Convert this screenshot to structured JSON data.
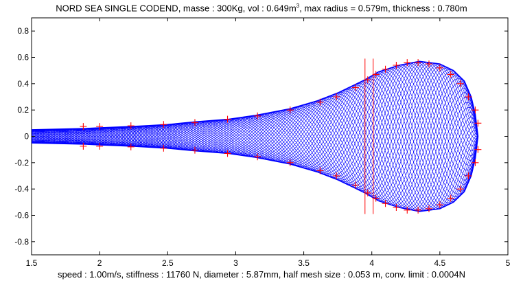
{
  "chart_data": {
    "type": "line",
    "title_parts": {
      "before_sup": "NORD SEA SINGLE CODEND, masse : 300Kg, vol : 0.649m",
      "sup": "3",
      "after_sup": ", max radius = 0.579m, thickness : 0.780m"
    },
    "xlabel": "speed : 1.00m/s, stiffness : 11760 N, diameter : 5.87mm, half mesh size : 0.053 m, conv. limit : 0.0004N",
    "ylabel": "",
    "xlim": [
      1.5,
      5
    ],
    "ylim": [
      -0.9,
      0.9
    ],
    "x_ticks": [
      "1.5",
      "2",
      "2.5",
      "3",
      "3.5",
      "4",
      "4.5",
      "5"
    ],
    "y_ticks": [
      "0.8",
      "0.6",
      "0.4",
      "0.2",
      "0",
      "-0.2",
      "-0.4",
      "-0.6",
      "-0.8"
    ],
    "grid": false,
    "series": [
      {
        "role": "netting-mesh",
        "color": "#0000ff",
        "profile_x": [
          1.5,
          1.9,
          2.0,
          2.25,
          2.5,
          2.7,
          2.95,
          3.15,
          3.4,
          3.6,
          3.75,
          3.85,
          3.95,
          4.05,
          4.2,
          4.35,
          4.5,
          4.6,
          4.68,
          4.73,
          4.76,
          4.78
        ],
        "profile_radius": [
          0.05,
          0.06,
          0.065,
          0.075,
          0.09,
          0.11,
          0.13,
          0.16,
          0.21,
          0.27,
          0.33,
          0.38,
          0.43,
          0.49,
          0.54,
          0.57,
          0.55,
          0.5,
          0.42,
          0.3,
          0.17,
          0.0
        ]
      },
      {
        "role": "nodes",
        "color": "#ff0000",
        "marker": "+",
        "x": [
          1.88,
          2.0,
          2.23,
          2.47,
          2.7,
          2.94,
          3.16,
          3.4,
          3.62,
          3.74,
          3.88,
          3.97,
          4.03,
          4.1,
          4.18,
          4.26,
          4.34,
          4.42,
          4.5,
          4.58,
          4.65,
          4.71,
          4.76,
          4.78
        ],
        "y": [
          0.075,
          0.075,
          0.08,
          0.09,
          0.105,
          0.13,
          0.155,
          0.2,
          0.26,
          0.3,
          0.37,
          0.43,
          0.47,
          0.51,
          0.54,
          0.56,
          0.56,
          0.55,
          0.52,
          0.47,
          0.4,
          0.3,
          0.2,
          0.1
        ]
      }
    ],
    "vertical_lines_x": [
      3.95,
      4.01
    ]
  }
}
